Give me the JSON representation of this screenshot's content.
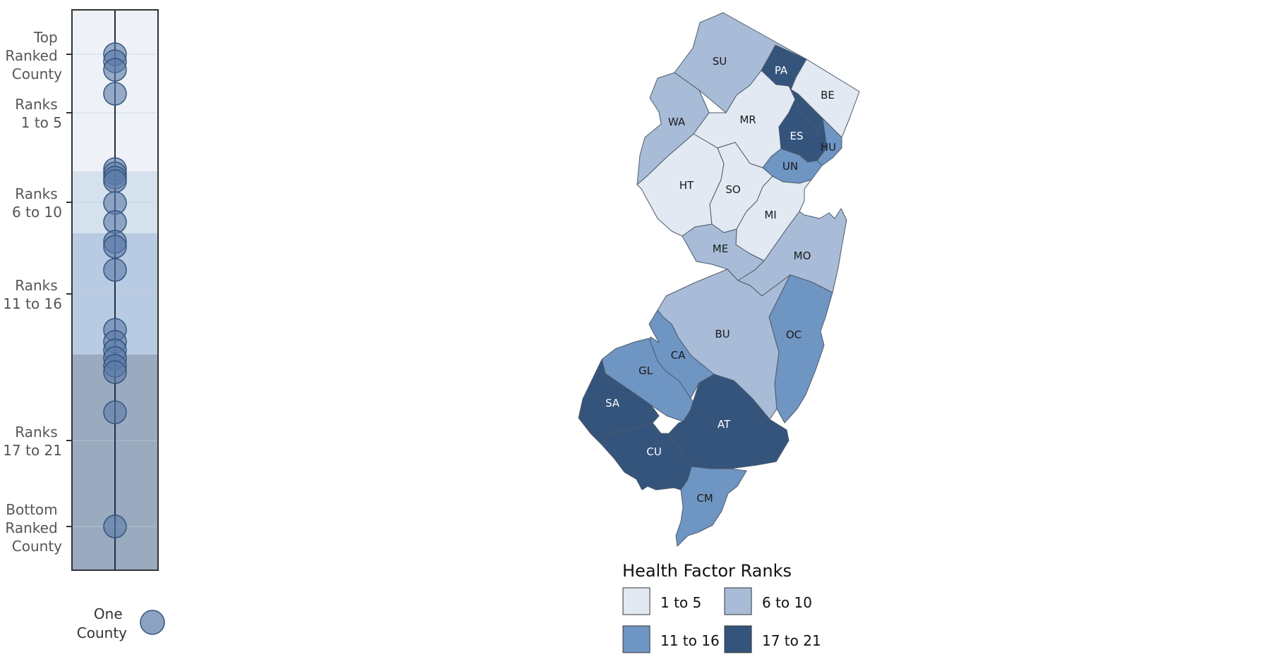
{
  "strip": {
    "axis_labels": [
      [
        "Top",
        "Ranked",
        "County"
      ],
      [
        "Ranks",
        "1 to 5"
      ],
      [
        "Ranks",
        "6 to 10"
      ],
      [
        "Ranks",
        "11 to 16"
      ],
      [
        "Ranks",
        "17 to 21"
      ],
      [
        "Bottom",
        "Ranked",
        "County"
      ]
    ],
    "band_colors": [
      "#eef2f8",
      "#d6e1ee",
      "#b8cbe3",
      "#9aabc0"
    ],
    "one_county_label": [
      "One",
      "County"
    ],
    "dot_color": "#5a7aa6"
  },
  "map": {
    "counties": [
      {
        "abbr": "SU",
        "bucket": 1
      },
      {
        "abbr": "PA",
        "bucket": 3
      },
      {
        "abbr": "BE",
        "bucket": 0
      },
      {
        "abbr": "WA",
        "bucket": 1
      },
      {
        "abbr": "MR",
        "bucket": 0
      },
      {
        "abbr": "ES",
        "bucket": 3
      },
      {
        "abbr": "HU",
        "bucket": 2
      },
      {
        "abbr": "UN",
        "bucket": 2
      },
      {
        "abbr": "HT",
        "bucket": 0
      },
      {
        "abbr": "SO",
        "bucket": 0
      },
      {
        "abbr": "MI",
        "bucket": 0
      },
      {
        "abbr": "ME",
        "bucket": 1
      },
      {
        "abbr": "MO",
        "bucket": 1
      },
      {
        "abbr": "BU",
        "bucket": 1
      },
      {
        "abbr": "OC",
        "bucket": 2
      },
      {
        "abbr": "CA",
        "bucket": 2
      },
      {
        "abbr": "GL",
        "bucket": 2
      },
      {
        "abbr": "SA",
        "bucket": 3
      },
      {
        "abbr": "AT",
        "bucket": 3
      },
      {
        "abbr": "CU",
        "bucket": 3
      },
      {
        "abbr": "CM",
        "bucket": 2
      }
    ]
  },
  "legend": {
    "title": "Health Factor Ranks",
    "items": [
      {
        "label": "1 to 5",
        "color": "#e3e9f2"
      },
      {
        "label": "6 to 10",
        "color": "#a8bcd8"
      },
      {
        "label": "11 to 16",
        "color": "#6f95c3"
      },
      {
        "label": "17 to 21",
        "color": "#34547c"
      }
    ]
  }
}
